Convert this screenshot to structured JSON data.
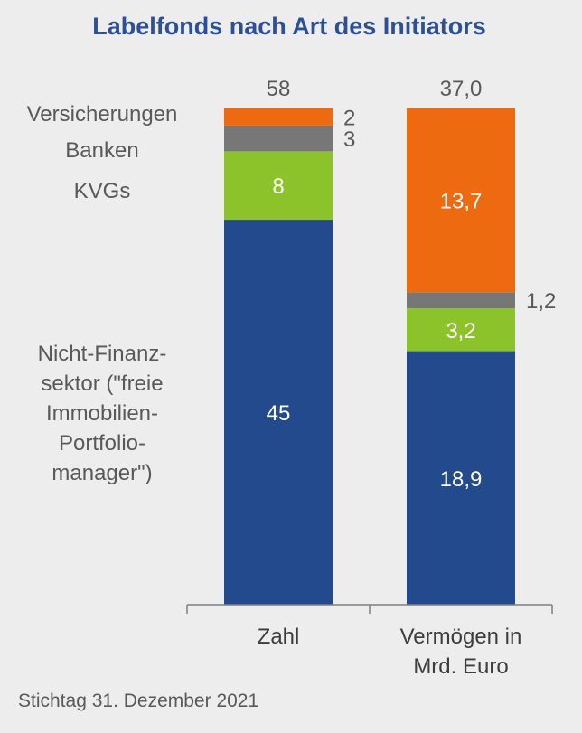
{
  "chart_data": {
    "type": "bar",
    "stacked": true,
    "title": "Labelfonds nach Art des Initiators",
    "categories": [
      [
        "Zahl"
      ],
      [
        "Vermögen in",
        "Mrd. Euro"
      ]
    ],
    "totals": [
      "58",
      "37,0"
    ],
    "series": [
      {
        "name_lines": [
          "Nicht-Finanz-",
          "sektor (\"freie",
          "Immobilien-",
          "Portfolio-",
          "manager\")"
        ],
        "color": "#234a8c",
        "values": [
          45,
          18.9
        ],
        "labels": [
          "45",
          "18,9"
        ],
        "label_position": [
          "inside",
          "inside"
        ],
        "label_color": "#ffffff"
      },
      {
        "name_lines": [
          "KVGs"
        ],
        "color": "#8cc22a",
        "values": [
          8,
          3.2
        ],
        "labels": [
          "8",
          "3,2"
        ],
        "label_position": [
          "inside",
          "inside"
        ],
        "label_color": "#ffffff"
      },
      {
        "name_lines": [
          "Banken"
        ],
        "color": "#777777",
        "values": [
          3,
          1.2
        ],
        "labels": [
          "3",
          "1,2"
        ],
        "label_position": [
          "outside",
          "outside"
        ],
        "label_color": "#595959"
      },
      {
        "name_lines": [
          "Versicherungen"
        ],
        "color": "#ee6a11",
        "values": [
          2,
          13.7
        ],
        "labels": [
          "2",
          "13,7"
        ],
        "label_position": [
          "outside",
          "inside"
        ],
        "label_color": "#ffffff"
      }
    ],
    "footnote": "Stichtag 31. Dezember 2021"
  }
}
